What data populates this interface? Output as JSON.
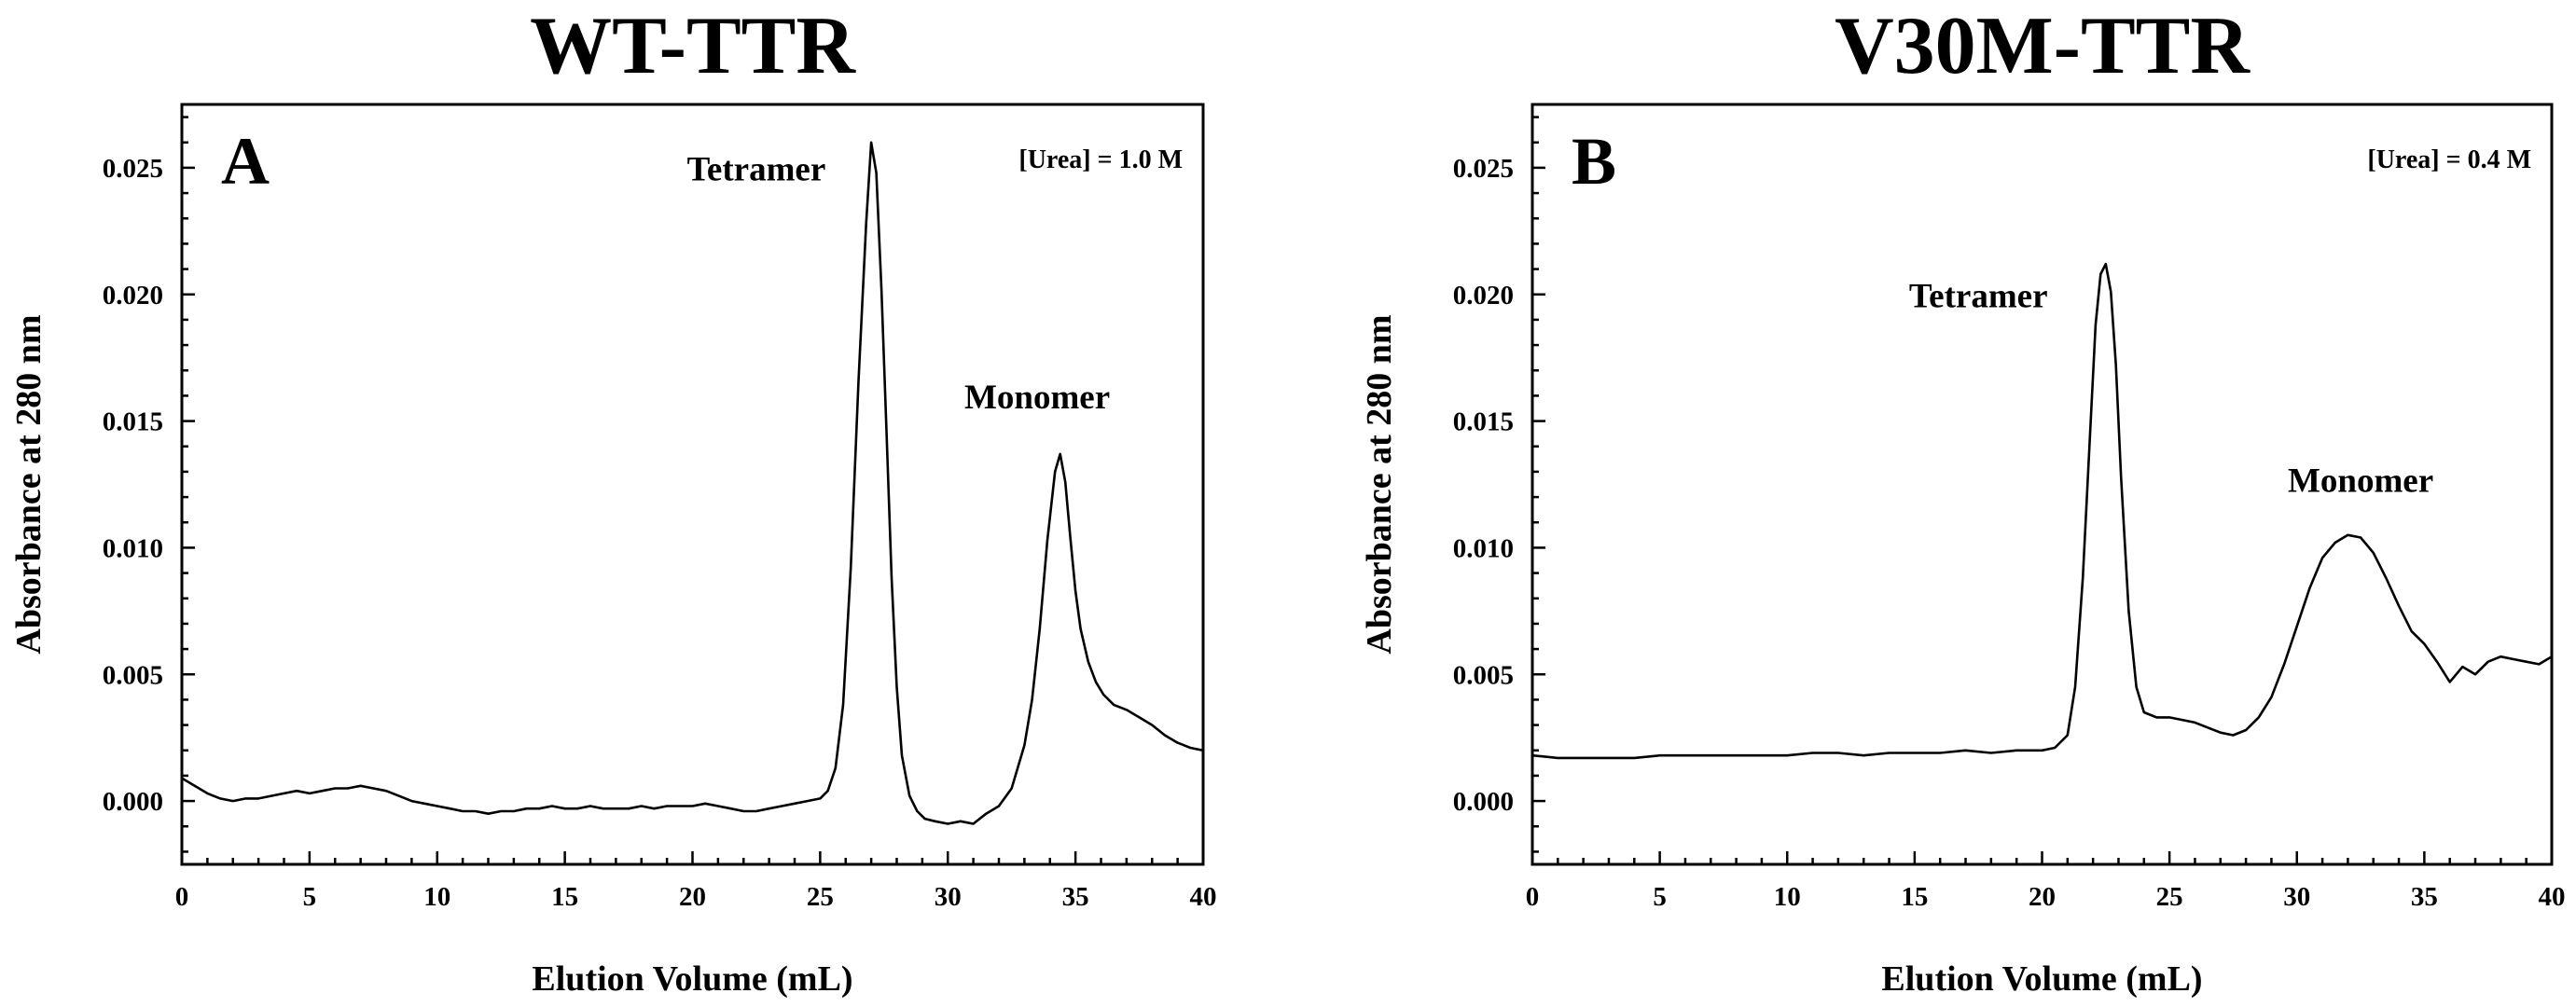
{
  "chart_data": [
    {
      "type": "line",
      "title": "WT-TTR",
      "panel_letter": "A",
      "condition": "[Urea] = 1.0 M",
      "xlabel": "Elution Volume (mL)",
      "ylabel": "Absorbance at 280 nm",
      "xlim": [
        0,
        40
      ],
      "ylim": [
        -0.0025,
        0.0275
      ],
      "xticks": [
        0,
        5,
        10,
        15,
        20,
        25,
        30,
        35,
        40
      ],
      "yticks": [
        0.0,
        0.005,
        0.01,
        0.015,
        0.02,
        0.025
      ],
      "xtick_labels": [
        "0",
        "5",
        "10",
        "15",
        "20",
        "25",
        "30",
        "35",
        "40"
      ],
      "ytick_labels": [
        "0.000",
        "0.005",
        "0.010",
        "0.015",
        "0.020",
        "0.025"
      ],
      "annotations": [
        {
          "name": "tetramer",
          "text": "Tetramer",
          "x": 22.5,
          "y": 0.0245
        },
        {
          "name": "monomer",
          "text": "Monomer",
          "x": 33.5,
          "y": 0.0155
        }
      ],
      "series": [
        {
          "name": "WT-TTR",
          "x": [
            0,
            0.5,
            1,
            1.5,
            2,
            2.5,
            3,
            3.5,
            4,
            4.5,
            5,
            5.5,
            6,
            6.5,
            7,
            7.5,
            8,
            8.5,
            9,
            9.5,
            10,
            10.5,
            11,
            11.5,
            12,
            12.5,
            13,
            13.5,
            14,
            14.5,
            15,
            15.5,
            16,
            16.5,
            17,
            17.5,
            18,
            18.5,
            19,
            19.5,
            20,
            20.5,
            21,
            21.5,
            22,
            22.5,
            23,
            23.5,
            24,
            24.5,
            25,
            25.3,
            25.6,
            25.9,
            26.2,
            26.5,
            26.8,
            27.0,
            27.2,
            27.4,
            27.6,
            27.8,
            28.0,
            28.2,
            28.5,
            28.8,
            29.1,
            29.5,
            30.0,
            30.5,
            31.0,
            31.5,
            32.0,
            32.5,
            33.0,
            33.3,
            33.6,
            33.9,
            34.2,
            34.4,
            34.6,
            34.8,
            35.0,
            35.2,
            35.5,
            35.8,
            36.1,
            36.5,
            37.0,
            37.5,
            38.0,
            38.5,
            39.0,
            39.5,
            40.0
          ],
          "y": [
            0.0009,
            0.0006,
            0.0003,
            0.0001,
            0.0,
            0.0001,
            0.0001,
            0.0002,
            0.0003,
            0.0004,
            0.0003,
            0.0004,
            0.0005,
            0.0005,
            0.0006,
            0.0005,
            0.0004,
            0.0002,
            0.0,
            -0.0001,
            -0.0002,
            -0.0003,
            -0.0004,
            -0.0004,
            -0.0005,
            -0.0004,
            -0.0004,
            -0.0003,
            -0.0003,
            -0.0002,
            -0.0003,
            -0.0003,
            -0.0002,
            -0.0003,
            -0.0003,
            -0.0003,
            -0.0002,
            -0.0003,
            -0.0002,
            -0.0002,
            -0.0002,
            -0.0001,
            -0.0002,
            -0.0003,
            -0.0004,
            -0.0004,
            -0.0003,
            -0.0002,
            -0.0001,
            0.0,
            0.0001,
            0.0004,
            0.0013,
            0.0038,
            0.0092,
            0.0165,
            0.0228,
            0.026,
            0.0248,
            0.0202,
            0.0145,
            0.0088,
            0.0045,
            0.0018,
            0.0002,
            -0.0004,
            -0.0007,
            -0.0008,
            -0.0009,
            -0.0008,
            -0.0009,
            -0.0005,
            -0.0002,
            0.0005,
            0.0022,
            0.004,
            0.0068,
            0.0103,
            0.013,
            0.0137,
            0.0126,
            0.0104,
            0.0083,
            0.0068,
            0.0055,
            0.0047,
            0.0042,
            0.0038,
            0.0036,
            0.0033,
            0.003,
            0.0026,
            0.0023,
            0.0021,
            0.002
          ]
        }
      ]
    },
    {
      "type": "line",
      "title": "V30M-TTR",
      "panel_letter": "B",
      "condition": "[Urea] = 0.4 M",
      "xlabel": "Elution Volume (mL)",
      "ylabel": "Absorbance at 280 nm",
      "xlim": [
        0,
        40
      ],
      "ylim": [
        -0.0025,
        0.0275
      ],
      "xticks": [
        0,
        5,
        10,
        15,
        20,
        25,
        30,
        35,
        40
      ],
      "yticks": [
        0.0,
        0.005,
        0.01,
        0.015,
        0.02,
        0.025
      ],
      "xtick_labels": [
        "0",
        "5",
        "10",
        "15",
        "20",
        "25",
        "30",
        "35",
        "40"
      ],
      "ytick_labels": [
        "0.000",
        "0.005",
        "0.010",
        "0.015",
        "0.020",
        "0.025"
      ],
      "annotations": [
        {
          "name": "tetramer",
          "text": "Tetramer",
          "x": 17.5,
          "y": 0.0195
        },
        {
          "name": "monomer",
          "text": "Monomer",
          "x": 32.5,
          "y": 0.0122
        }
      ],
      "series": [
        {
          "name": "V30M-TTR",
          "x": [
            0,
            1,
            2,
            3,
            4,
            5,
            6,
            7,
            8,
            9,
            10,
            11,
            12,
            13,
            14,
            15,
            16,
            17,
            18,
            19,
            20,
            20.5,
            21.0,
            21.3,
            21.6,
            21.9,
            22.1,
            22.3,
            22.5,
            22.7,
            22.9,
            23.1,
            23.4,
            23.7,
            24.0,
            24.5,
            25.0,
            25.5,
            26.0,
            26.5,
            27.0,
            27.5,
            28.0,
            28.5,
            29.0,
            29.5,
            30.0,
            30.5,
            31.0,
            31.5,
            32.0,
            32.5,
            33.0,
            33.5,
            34.0,
            34.5,
            35.0,
            35.5,
            36.0,
            36.5,
            37.0,
            37.5,
            38.0,
            38.5,
            39.0,
            39.5,
            40.0
          ],
          "y": [
            0.0018,
            0.0017,
            0.0017,
            0.0017,
            0.0017,
            0.0018,
            0.0018,
            0.0018,
            0.0018,
            0.0018,
            0.0018,
            0.0019,
            0.0019,
            0.0018,
            0.0019,
            0.0019,
            0.0019,
            0.002,
            0.0019,
            0.002,
            0.002,
            0.0021,
            0.0026,
            0.0045,
            0.0088,
            0.0148,
            0.0188,
            0.0208,
            0.0212,
            0.0201,
            0.0172,
            0.0128,
            0.0075,
            0.0045,
            0.0035,
            0.0033,
            0.0033,
            0.0032,
            0.0031,
            0.0029,
            0.0027,
            0.0026,
            0.0028,
            0.0033,
            0.0041,
            0.0054,
            0.0069,
            0.0084,
            0.0096,
            0.0102,
            0.0105,
            0.0104,
            0.0098,
            0.0088,
            0.0077,
            0.0067,
            0.0062,
            0.0055,
            0.0047,
            0.0053,
            0.005,
            0.0055,
            0.0057,
            0.0056,
            0.0055,
            0.0054,
            0.0057
          ]
        }
      ]
    }
  ]
}
